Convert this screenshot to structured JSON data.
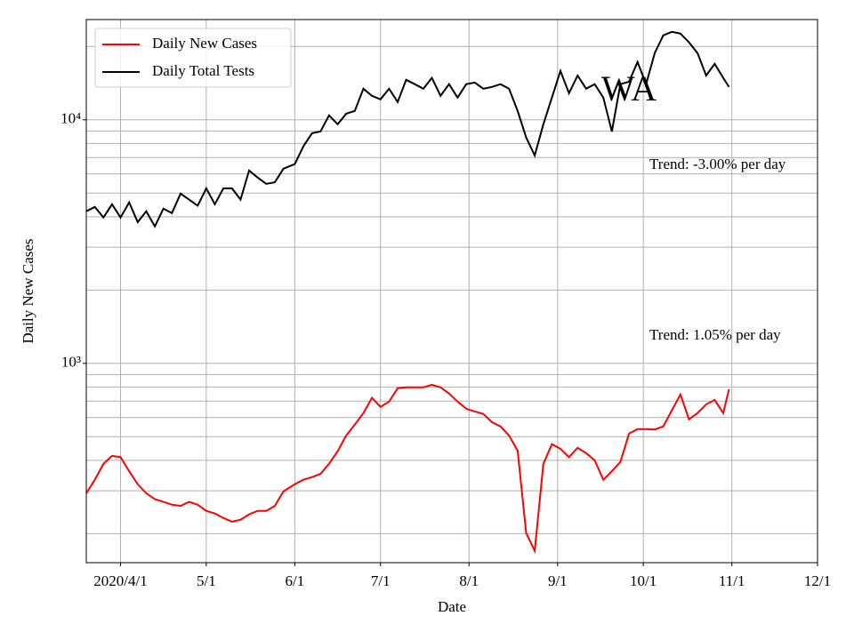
{
  "chart_data": {
    "type": "line",
    "xlabel": "Date",
    "ylabel": "Daily New Cases",
    "annotations": [
      "WA",
      "Trend: -3.00% per day",
      "Trend: 1.05% per day"
    ],
    "x": [
      "2020-03-20",
      "2020-03-23",
      "2020-03-26",
      "2020-03-29",
      "2020-04-01",
      "2020-04-04",
      "2020-04-07",
      "2020-04-10",
      "2020-04-13",
      "2020-04-16",
      "2020-04-19",
      "2020-04-22",
      "2020-04-25",
      "2020-04-28",
      "2020-05-01",
      "2020-05-04",
      "2020-05-07",
      "2020-05-10",
      "2020-05-13",
      "2020-05-16",
      "2020-05-19",
      "2020-05-22",
      "2020-05-25",
      "2020-05-28",
      "2020-06-01",
      "2020-06-04",
      "2020-06-07",
      "2020-06-10",
      "2020-06-13",
      "2020-06-16",
      "2020-06-19",
      "2020-06-22",
      "2020-06-25",
      "2020-06-28",
      "2020-07-01",
      "2020-07-04",
      "2020-07-07",
      "2020-07-10",
      "2020-07-13",
      "2020-07-16",
      "2020-07-19",
      "2020-07-22",
      "2020-07-25",
      "2020-07-28",
      "2020-07-31",
      "2020-08-03",
      "2020-08-06",
      "2020-08-09",
      "2020-08-12",
      "2020-08-15",
      "2020-08-18",
      "2020-08-21",
      "2020-08-24",
      "2020-08-27",
      "2020-08-30",
      "2020-09-02",
      "2020-09-05",
      "2020-09-08",
      "2020-09-11",
      "2020-09-14",
      "2020-09-17",
      "2020-09-20",
      "2020-09-23",
      "2020-09-26",
      "2020-09-29",
      "2020-10-02",
      "2020-10-05",
      "2020-10-08",
      "2020-10-11",
      "2020-10-14",
      "2020-10-17",
      "2020-10-20",
      "2020-10-23",
      "2020-10-26",
      "2020-10-29",
      "2020-10-31"
    ],
    "series": [
      {
        "name": "Daily New Cases",
        "color": "#ff0000",
        "values": [
          293,
          333,
          387,
          417,
          412,
          361,
          319,
          293,
          277,
          270,
          263,
          260,
          270,
          263,
          248,
          242,
          232,
          224,
          228,
          240,
          248,
          248,
          260,
          298,
          319,
          333,
          341,
          352,
          387,
          436,
          506,
          560,
          625,
          722,
          663,
          697,
          791,
          797,
          797,
          797,
          817,
          797,
          752,
          697,
          651,
          635,
          620,
          574,
          551,
          506,
          438,
          201,
          170,
          387,
          466,
          446,
          412,
          450,
          428,
          400,
          333,
          361,
          394,
          515,
          537,
          537,
          535,
          551,
          641,
          745,
          589,
          625,
          679,
          708,
          625,
          784
        ]
      },
      {
        "name": "Daily Total Tests",
        "color": "#000000",
        "values": [
          4210,
          4390,
          3970,
          4500,
          3970,
          4580,
          3800,
          4210,
          3650,
          4320,
          4140,
          4980,
          4700,
          4440,
          5230,
          4500,
          5230,
          5230,
          4700,
          6190,
          5790,
          5460,
          5540,
          6300,
          6580,
          7780,
          8810,
          8960,
          10430,
          9590,
          10600,
          10880,
          13420,
          12550,
          12130,
          13420,
          11830,
          14590,
          14000,
          13420,
          14870,
          12550,
          14000,
          12340,
          14000,
          14220,
          13420,
          13650,
          14000,
          13420,
          10880,
          8450,
          7140,
          9590,
          12340,
          15870,
          12860,
          15200,
          13420,
          14000,
          12340,
          8960,
          14000,
          14340,
          17270,
          14000,
          18790,
          22220,
          22970,
          22600,
          20800,
          18790,
          15200,
          16980,
          14870,
          13650
        ]
      }
    ],
    "xlim": [
      "2020-03-20",
      "2020-12-01"
    ],
    "xticks": [
      {
        "value": "2020-04-01",
        "label": "2020/4/1"
      },
      {
        "value": "2020-05-01",
        "label": "5/1"
      },
      {
        "value": "2020-06-01",
        "label": "6/1"
      },
      {
        "value": "2020-07-01",
        "label": "7/1"
      },
      {
        "value": "2020-08-01",
        "label": "8/1"
      },
      {
        "value": "2020-09-01",
        "label": "9/1"
      },
      {
        "value": "2020-10-01",
        "label": "10/1"
      },
      {
        "value": "2020-11-01",
        "label": "11/1"
      },
      {
        "value": "2020-12-01",
        "label": "12/1"
      }
    ],
    "ylim": [
      152,
      25800
    ],
    "yscale": "log",
    "yticks": [
      {
        "value": 1000,
        "label": "10³"
      },
      {
        "value": 10000,
        "label": "10⁴"
      }
    ],
    "yminorticks": [
      200,
      300,
      400,
      500,
      600,
      700,
      800,
      900,
      2000,
      3000,
      4000,
      5000,
      6000,
      7000,
      8000,
      9000,
      20000
    ],
    "grid": true,
    "legend": "upper left"
  }
}
